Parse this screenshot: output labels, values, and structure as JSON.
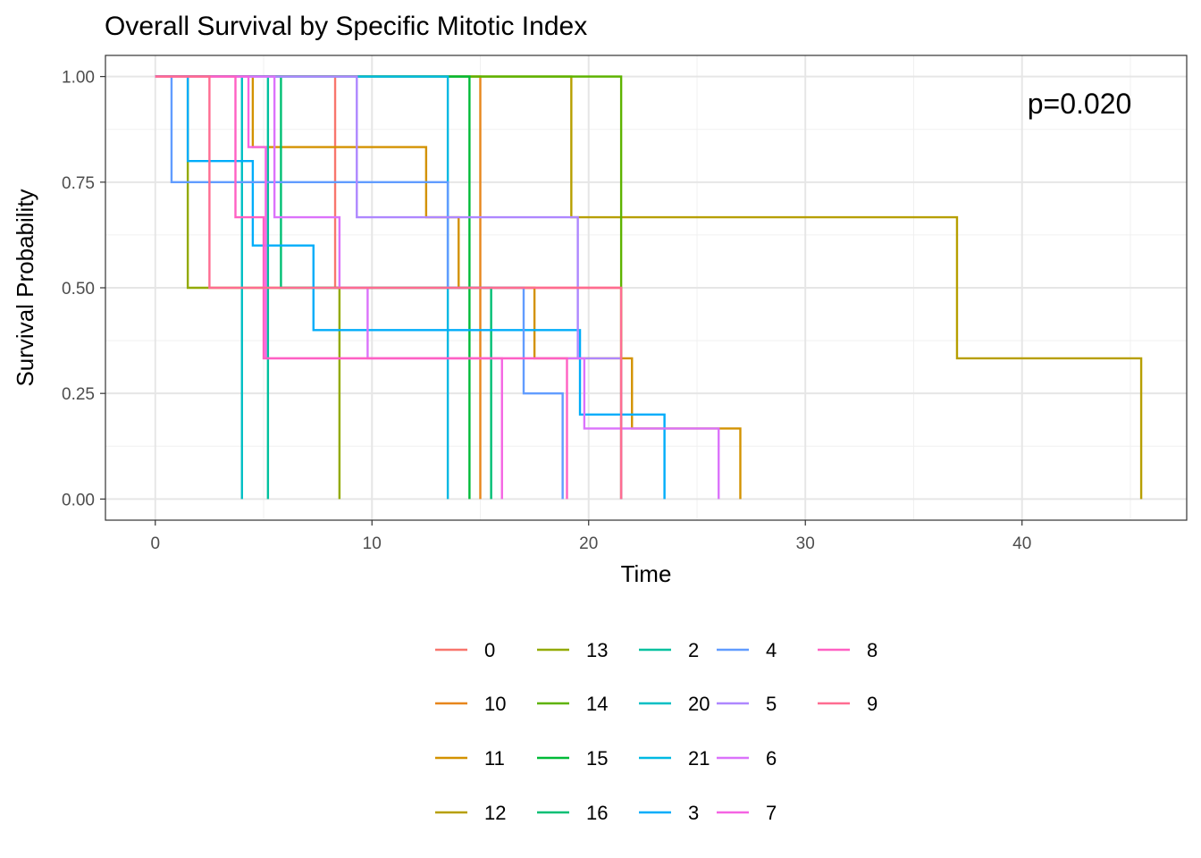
{
  "chart_data": {
    "type": "line",
    "subtype": "kaplan-meier step",
    "title": "Overall Survival by Specific Mitotic Index",
    "xlabel": "Time",
    "ylabel": "Survival Probability",
    "xlim": [
      -2.3,
      47.6
    ],
    "ylim": [
      -0.05,
      1.05
    ],
    "x_ticks": [
      0,
      10,
      20,
      30,
      40
    ],
    "x_tick_labels": [
      "0",
      "10",
      "20",
      "30",
      "40"
    ],
    "y_ticks": [
      0,
      0.25,
      0.5,
      0.75,
      1
    ],
    "y_tick_labels": [
      "0.00",
      "0.25",
      "0.50",
      "0.75",
      "1.00"
    ],
    "grid": true,
    "legend_position": "bottom",
    "annotation": "p=0.020",
    "series": [
      {
        "name": "0",
        "color": "#F8766D",
        "steps": [
          [
            0,
            1
          ],
          [
            8.3,
            0.5
          ],
          [
            21.5,
            0
          ]
        ]
      },
      {
        "name": "10",
        "color": "#E7861B",
        "steps": [
          [
            0,
            1
          ],
          [
            15,
            0
          ]
        ]
      },
      {
        "name": "11",
        "color": "#D39200",
        "steps": [
          [
            0,
            1
          ],
          [
            4.5,
            0.833
          ],
          [
            12.5,
            0.667
          ],
          [
            14,
            0.5
          ],
          [
            17.5,
            0.333
          ],
          [
            22,
            0.167
          ],
          [
            27,
            0
          ]
        ]
      },
      {
        "name": "12",
        "color": "#B79F00",
        "steps": [
          [
            0,
            1
          ],
          [
            19.2,
            0.667
          ],
          [
            37,
            0.333
          ],
          [
            45.5,
            0
          ]
        ]
      },
      {
        "name": "13",
        "color": "#93AA00",
        "steps": [
          [
            0,
            1
          ],
          [
            1.5,
            0.5
          ],
          [
            8.5,
            0
          ]
        ]
      },
      {
        "name": "14",
        "color": "#5EB300",
        "steps": [
          [
            0,
            1
          ],
          [
            21.5,
            0
          ]
        ]
      },
      {
        "name": "15",
        "color": "#00BA38",
        "steps": [
          [
            0,
            1
          ],
          [
            14.5,
            0
          ]
        ]
      },
      {
        "name": "16",
        "color": "#00BF74",
        "steps": [
          [
            0,
            1
          ],
          [
            5.8,
            0.5
          ],
          [
            15.5,
            0
          ]
        ]
      },
      {
        "name": "2",
        "color": "#00C19F",
        "steps": [
          [
            0,
            1
          ],
          [
            5.2,
            0
          ]
        ]
      },
      {
        "name": "20",
        "color": "#00BFC4",
        "steps": [
          [
            0,
            1
          ],
          [
            4,
            0
          ]
        ]
      },
      {
        "name": "21",
        "color": "#00B9E3",
        "steps": [
          [
            0,
            1
          ],
          [
            13.5,
            0
          ]
        ]
      },
      {
        "name": "3",
        "color": "#00ADFA",
        "steps": [
          [
            0,
            1
          ],
          [
            1.5,
            0.8
          ],
          [
            4.5,
            0.6
          ],
          [
            7.3,
            0.4
          ],
          [
            19.6,
            0.2
          ],
          [
            23.5,
            0
          ]
        ]
      },
      {
        "name": "4",
        "color": "#619CFF",
        "steps": [
          [
            0,
            1
          ],
          [
            0.75,
            0.75
          ],
          [
            13.5,
            0.5
          ],
          [
            17,
            0.25
          ],
          [
            18.8,
            0
          ]
        ]
      },
      {
        "name": "5",
        "color": "#AE87FF",
        "steps": [
          [
            0,
            1
          ],
          [
            9.3,
            0.667
          ],
          [
            19.5,
            0.333
          ],
          [
            21.5,
            0
          ]
        ]
      },
      {
        "name": "6",
        "color": "#DB72FB",
        "steps": [
          [
            0,
            1
          ],
          [
            5.5,
            0.667
          ],
          [
            8.5,
            0.5
          ],
          [
            9.8,
            0.333
          ],
          [
            19.8,
            0.167
          ],
          [
            26,
            0
          ]
        ]
      },
      {
        "name": "7",
        "color": "#F564E3",
        "steps": [
          [
            0,
            1
          ],
          [
            4.3,
            0.833
          ],
          [
            5.1,
            0.333
          ],
          [
            16,
            0
          ]
        ]
      },
      {
        "name": "8",
        "color": "#FF61C3",
        "steps": [
          [
            0,
            1
          ],
          [
            3.7,
            0.667
          ],
          [
            5,
            0.333
          ],
          [
            19,
            0
          ]
        ]
      },
      {
        "name": "9",
        "color": "#FF6C91",
        "steps": [
          [
            0,
            1
          ],
          [
            2.5,
            0.5
          ],
          [
            21.5,
            0
          ]
        ]
      }
    ]
  }
}
